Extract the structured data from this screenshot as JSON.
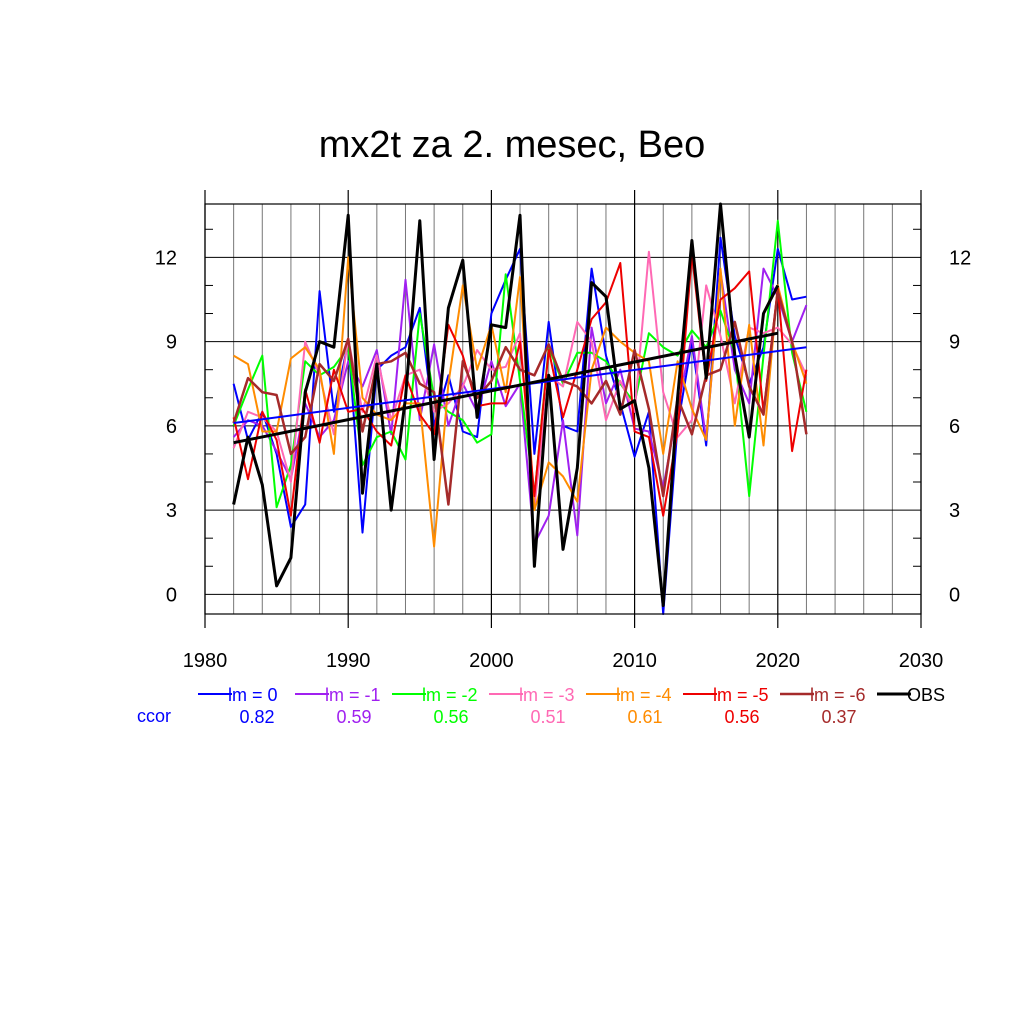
{
  "chart_data": {
    "type": "line",
    "title": "mx2t za 2. mesec, Beo",
    "xlabel": "",
    "ylabel": "",
    "xlim": [
      1980,
      2030
    ],
    "ylim": [
      -0.7,
      13.9
    ],
    "x_ticks": [
      "1980",
      "1990",
      "2000",
      "2010",
      "2020",
      "2030"
    ],
    "y_ticks": [
      "0",
      "3",
      "6",
      "9",
      "12"
    ],
    "grid": true,
    "ccor_label": "ccor",
    "x": [
      1982,
      1983,
      1984,
      1985,
      1986,
      1987,
      1988,
      1989,
      1990,
      1991,
      1992,
      1993,
      1994,
      1995,
      1996,
      1997,
      1998,
      1999,
      2000,
      2001,
      2002,
      2003,
      2004,
      2005,
      2006,
      2007,
      2008,
      2009,
      2010,
      2011,
      2012,
      2013,
      2014,
      2015,
      2016,
      2017,
      2018,
      2019,
      2020,
      2021,
      2022
    ],
    "series": [
      {
        "name": "lm = 0",
        "color": "#0000ff",
        "width": 2,
        "ccor": "0.82",
        "values": [
          7.5,
          5.5,
          6.5,
          5.0,
          2.4,
          3.2,
          10.8,
          6.5,
          9.0,
          2.2,
          8.0,
          8.5,
          8.8,
          10.2,
          6.0,
          7.8,
          5.8,
          5.6,
          10.0,
          11.2,
          12.3,
          5.0,
          9.7,
          6.0,
          5.8,
          11.6,
          8.5,
          6.8,
          4.9,
          6.5,
          -0.7,
          6.0,
          9.0,
          5.3,
          12.7,
          9.2,
          7.5,
          8.8,
          12.3,
          10.5,
          10.6
        ],
        "trend": [
          6.1,
          8.8
        ]
      },
      {
        "name": "lm = -1",
        "color": "#a020f0",
        "width": 2,
        "ccor": "0.59",
        "values": [
          5.6,
          6.2,
          6.0,
          5.1,
          4.1,
          6.8,
          5.6,
          6.2,
          8.3,
          7.4,
          8.7,
          5.7,
          11.2,
          6.2,
          8.9,
          6.0,
          7.5,
          6.5,
          8.3,
          6.7,
          7.5,
          1.8,
          2.8,
          6.2,
          2.1,
          9.5,
          6.8,
          8.0,
          5.9,
          5.8,
          3.8,
          6.6,
          9.2,
          5.5,
          11.5,
          8.0,
          6.8,
          11.6,
          10.6,
          9.0,
          10.3
        ],
        "trend": null
      },
      {
        "name": "lm = -2",
        "color": "#00ff00",
        "width": 2,
        "ccor": "0.56",
        "values": [
          6.0,
          7.3,
          8.5,
          3.1,
          4.6,
          8.3,
          7.8,
          8.1,
          8.8,
          4.6,
          5.6,
          5.8,
          4.8,
          10.0,
          7.0,
          6.5,
          6.2,
          5.4,
          5.7,
          11.4,
          7.6,
          3.5,
          8.8,
          7.5,
          8.6,
          8.6,
          8.3,
          7.5,
          6.8,
          9.3,
          8.8,
          8.5,
          9.4,
          8.8,
          10.1,
          8.6,
          3.5,
          8.5,
          13.3,
          8.6,
          6.5
        ],
        "trend": null
      },
      {
        "name": "lm = -3",
        "color": "#ff69b4",
        "width": 2,
        "ccor": "0.51",
        "values": [
          5.2,
          6.5,
          6.3,
          5.8,
          4.0,
          9.0,
          7.8,
          5.7,
          9.1,
          6.5,
          8.5,
          6.2,
          7.8,
          8.0,
          6.5,
          6.8,
          7.4,
          8.7,
          8.0,
          8.1,
          9.3,
          3.1,
          7.8,
          7.4,
          9.7,
          9.0,
          6.2,
          7.6,
          6.5,
          12.2,
          7.2,
          5.6,
          6.2,
          11.0,
          9.2,
          6.8,
          9.5,
          9.3,
          9.5,
          8.9,
          7.8
        ],
        "trend": null
      },
      {
        "name": "lm = -4",
        "color": "#ff8c00",
        "width": 2,
        "ccor": "0.61",
        "values": [
          8.5,
          8.2,
          5.8,
          5.8,
          8.4,
          8.8,
          8.0,
          5.0,
          12.0,
          7.0,
          6.4,
          6.2,
          6.8,
          6.8,
          1.7,
          7.5,
          11.0,
          8.0,
          9.6,
          7.2,
          11.3,
          3.0,
          4.7,
          4.2,
          3.3,
          8.0,
          9.5,
          9.0,
          8.6,
          8.3,
          5.0,
          8.3,
          6.6,
          5.5,
          11.6,
          6.0,
          9.6,
          5.3,
          11.0,
          9.0,
          7.5
        ],
        "trend": null
      },
      {
        "name": "lm = -5",
        "color": "#ee0000",
        "width": 2,
        "ccor": "0.56",
        "values": [
          6.3,
          4.1,
          6.5,
          5.5,
          2.8,
          7.3,
          5.4,
          8.0,
          6.5,
          6.6,
          5.8,
          5.3,
          7.8,
          6.4,
          5.7,
          9.6,
          8.5,
          6.7,
          6.8,
          6.8,
          9.0,
          3.5,
          8.7,
          6.3,
          8.0,
          9.8,
          10.4,
          11.8,
          5.8,
          5.6,
          2.8,
          5.8,
          12.1,
          7.6,
          10.5,
          10.9,
          11.5,
          6.5,
          10.9,
          5.1,
          8.0
        ],
        "trend": null
      },
      {
        "name": "lm = -6",
        "color": "#a52a2a",
        "width": 2.5,
        "ccor": "0.37",
        "values": [
          6.1,
          7.7,
          7.2,
          7.1,
          5.0,
          5.6,
          8.2,
          7.6,
          9.1,
          5.8,
          8.2,
          8.3,
          8.6,
          7.5,
          7.2,
          3.2,
          8.3,
          7.0,
          7.6,
          8.8,
          8.0,
          7.8,
          8.9,
          7.6,
          7.4,
          6.8,
          7.6,
          6.4,
          8.7,
          6.6,
          3.5,
          7.0,
          5.7,
          7.8,
          8.0,
          9.7,
          7.4,
          6.4,
          10.8,
          9.0,
          5.7
        ],
        "trend": null
      },
      {
        "name": "OBS",
        "color": "#000000",
        "width": 3,
        "ccor": "",
        "values": [
          3.2,
          5.6,
          3.9,
          0.3,
          1.3,
          7.2,
          9.0,
          8.8,
          13.5,
          3.6,
          8.2,
          3.0,
          7.0,
          13.3,
          4.8,
          10.2,
          11.9,
          6.3,
          9.6,
          9.5,
          13.5,
          1.0,
          7.8,
          1.6,
          4.5,
          11.1,
          10.6,
          6.6,
          6.9,
          4.5,
          -0.4,
          7.0,
          12.6,
          7.7,
          13.9,
          8.5,
          5.6,
          10.0,
          11.0,
          null,
          null
        ],
        "trend": [
          5.4,
          9.3
        ],
        "trend_x": [
          1982,
          2020
        ]
      }
    ]
  }
}
